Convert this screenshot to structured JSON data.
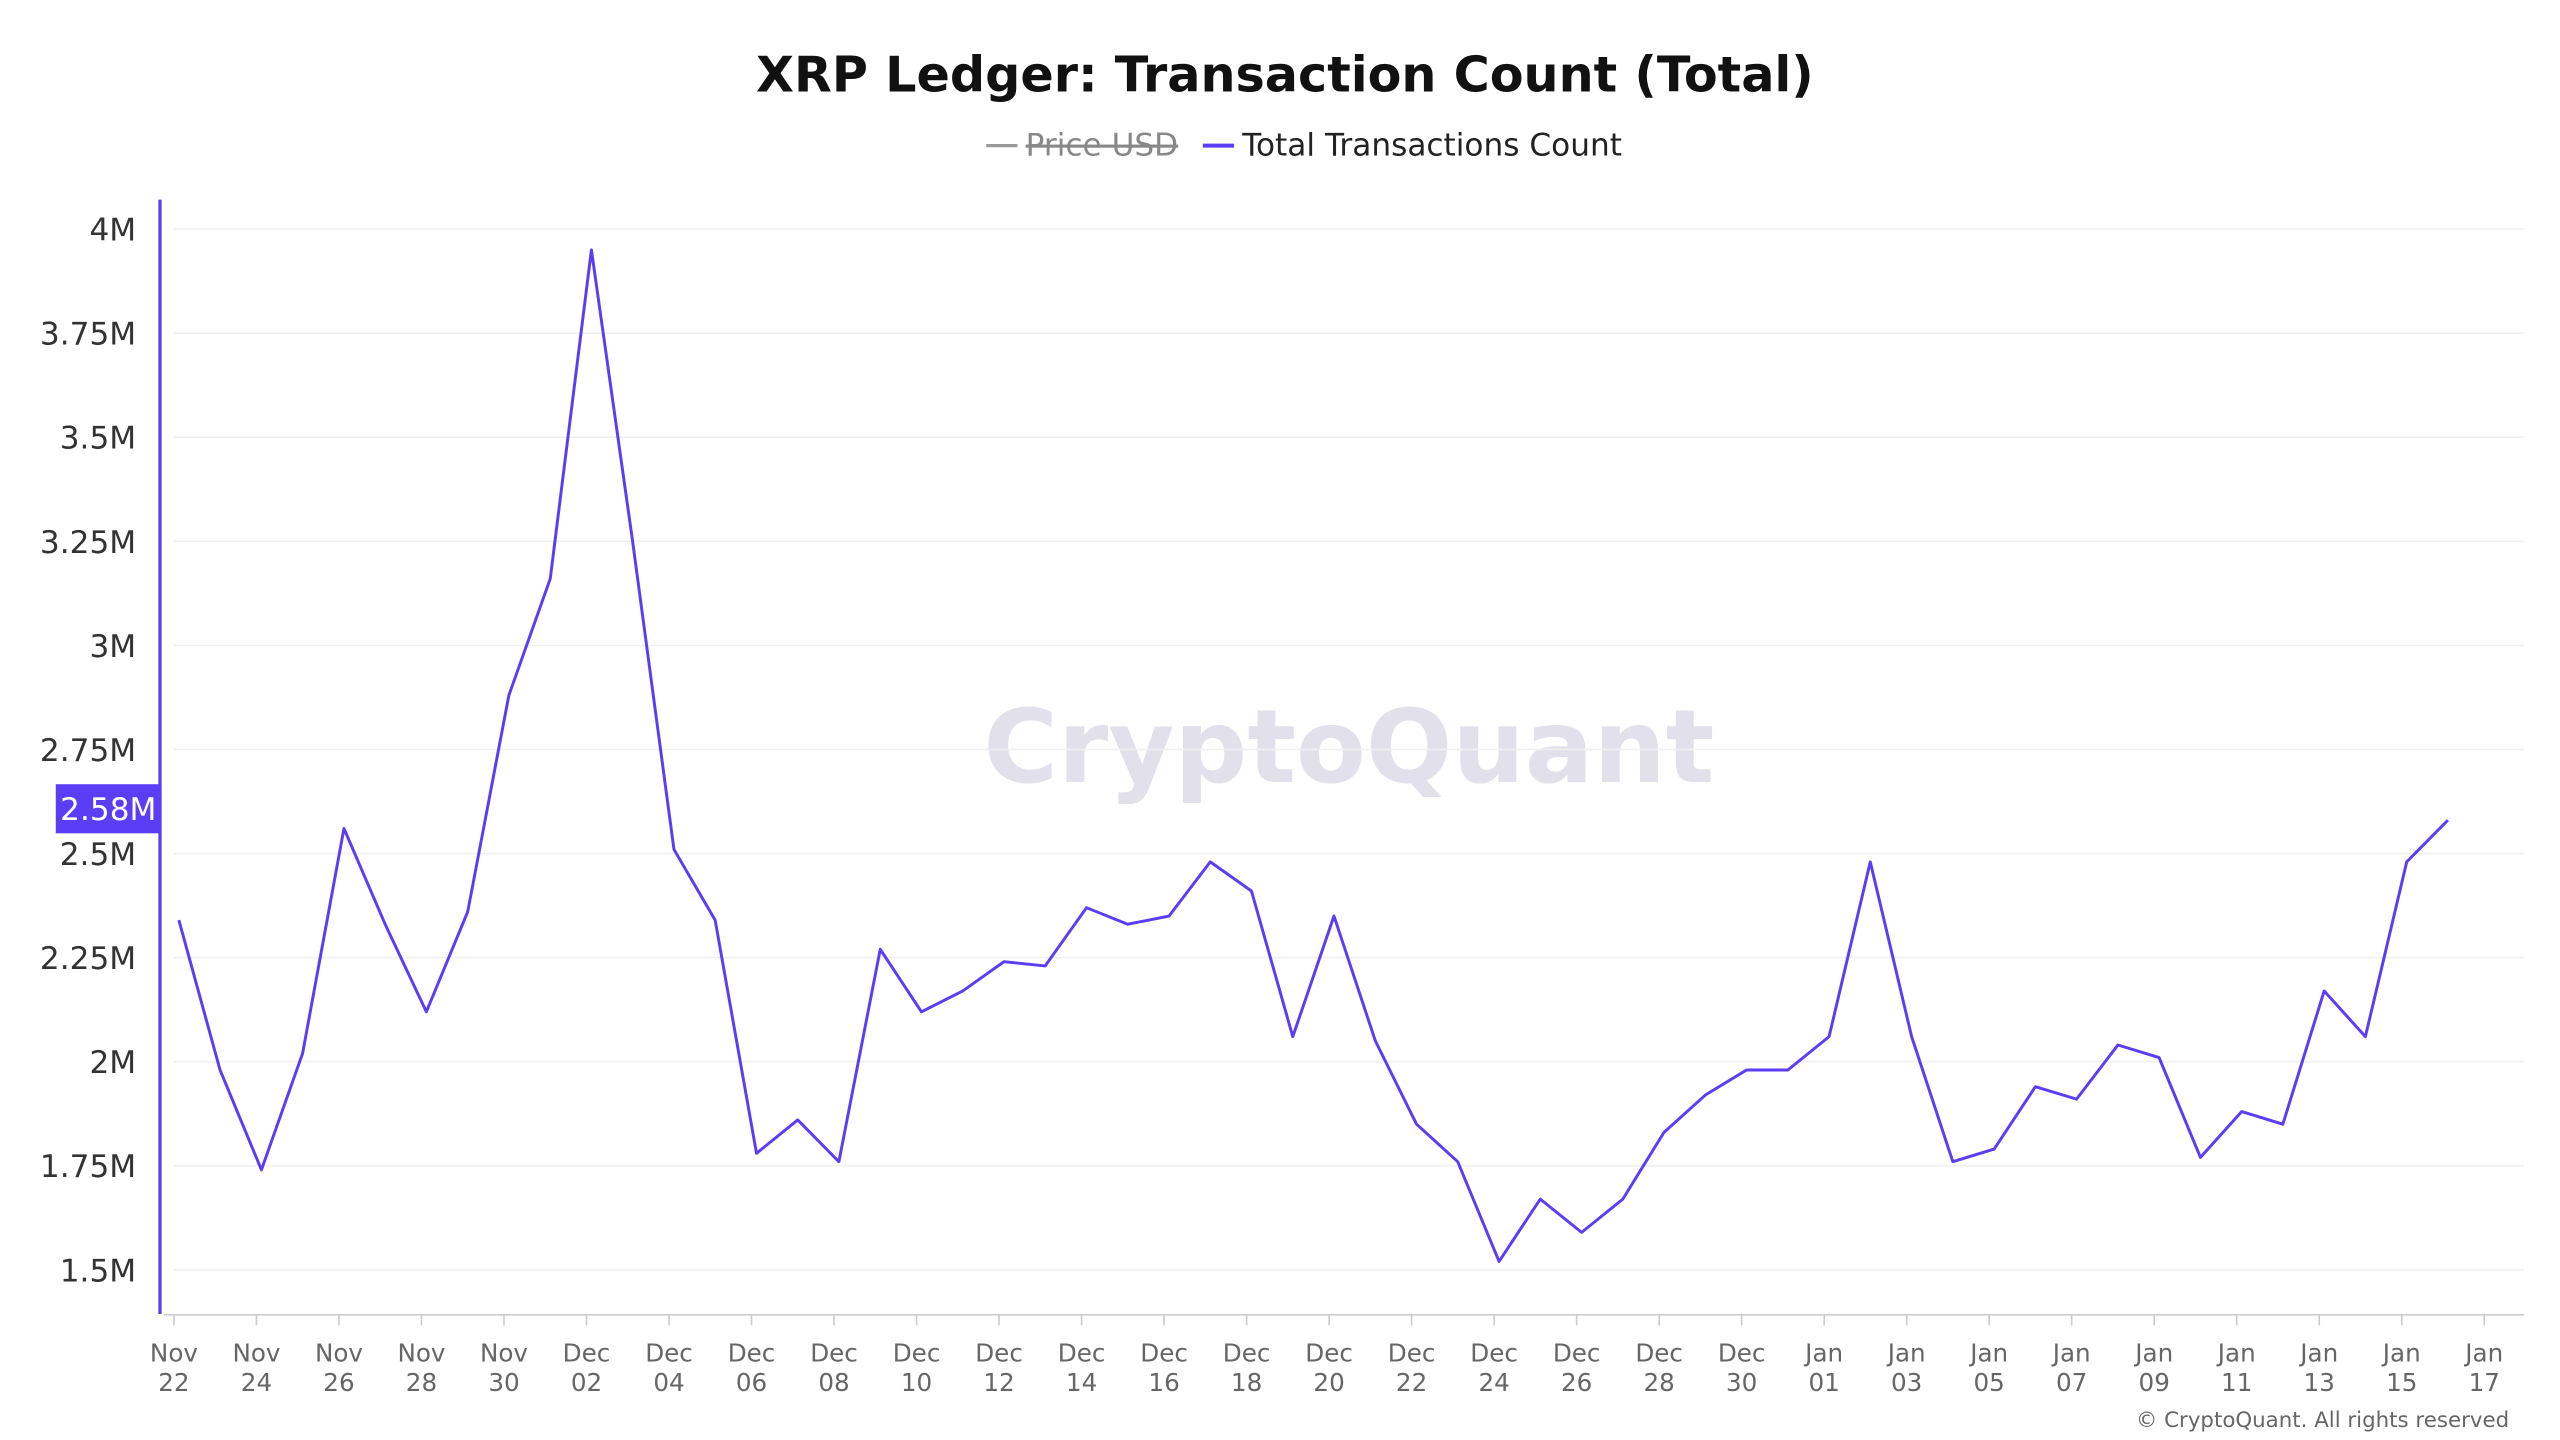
{
  "chart_data": {
    "type": "line",
    "title": "XRP Ledger: Transaction Count (Total)",
    "legend": [
      {
        "name": "Price USD",
        "color": "#999999",
        "disabled": true
      },
      {
        "name": "Total Transactions Count",
        "color": "#5b3df5",
        "disabled": false
      }
    ],
    "legend_placement": "top-center",
    "watermark": "CryptoQuant",
    "copyright": "© CryptoQuant. All rights reserved",
    "ylim": [
      1.4,
      4.1
    ],
    "yticks": [
      1.5,
      1.75,
      2,
      2.25,
      2.5,
      2.75,
      3,
      3.25,
      3.5,
      3.75,
      4
    ],
    "ytick_labels": [
      "1.5M",
      "1.75M",
      "2M",
      "2.25M",
      "2.5M",
      "2.75M",
      "3M",
      "3.25M",
      "3.5M",
      "3.75M",
      "4M"
    ],
    "y_unit": "M",
    "grid": true,
    "current_value_label": "2.58M",
    "x_start_label": "Nov 22",
    "xtick_labels": [
      [
        "Nov",
        "22"
      ],
      [
        "Nov",
        "24"
      ],
      [
        "Nov",
        "26"
      ],
      [
        "Nov",
        "28"
      ],
      [
        "Nov",
        "30"
      ],
      [
        "Dec",
        "02"
      ],
      [
        "Dec",
        "04"
      ],
      [
        "Dec",
        "06"
      ],
      [
        "Dec",
        "08"
      ],
      [
        "Dec",
        "10"
      ],
      [
        "Dec",
        "12"
      ],
      [
        "Dec",
        "14"
      ],
      [
        "Dec",
        "16"
      ],
      [
        "Dec",
        "18"
      ],
      [
        "Dec",
        "20"
      ],
      [
        "Dec",
        "22"
      ],
      [
        "Dec",
        "24"
      ],
      [
        "Dec",
        "26"
      ],
      [
        "Dec",
        "28"
      ],
      [
        "Dec",
        "30"
      ],
      [
        "Jan",
        "01"
      ],
      [
        "Jan",
        "03"
      ],
      [
        "Jan",
        "05"
      ],
      [
        "Jan",
        "07"
      ],
      [
        "Jan",
        "09"
      ],
      [
        "Jan",
        "11"
      ],
      [
        "Jan",
        "13"
      ],
      [
        "Jan",
        "15"
      ],
      [
        "Jan",
        "17"
      ]
    ],
    "series": [
      {
        "name": "Total Transactions Count",
        "color": "#5b3df5",
        "x": [
          "Nov 22",
          "Nov 23",
          "Nov 24",
          "Nov 25",
          "Nov 26",
          "Nov 27",
          "Nov 28",
          "Nov 29",
          "Nov 30",
          "Dec 01",
          "Dec 02",
          "Dec 03",
          "Dec 04",
          "Dec 05",
          "Dec 06",
          "Dec 07",
          "Dec 08",
          "Dec 09",
          "Dec 10",
          "Dec 11",
          "Dec 12",
          "Dec 13",
          "Dec 14",
          "Dec 15",
          "Dec 16",
          "Dec 17",
          "Dec 18",
          "Dec 19",
          "Dec 20",
          "Dec 21",
          "Dec 22",
          "Dec 23",
          "Dec 24",
          "Dec 25",
          "Dec 26",
          "Dec 27",
          "Dec 28",
          "Dec 29",
          "Dec 30",
          "Dec 31",
          "Jan 01",
          "Jan 02",
          "Jan 03",
          "Jan 04",
          "Jan 05",
          "Jan 06",
          "Jan 07",
          "Jan 08",
          "Jan 09",
          "Jan 10",
          "Jan 11",
          "Jan 12",
          "Jan 13",
          "Jan 14",
          "Jan 15",
          "Jan 16"
        ],
        "values": [
          2.34,
          1.98,
          1.74,
          2.02,
          2.56,
          2.33,
          2.12,
          2.36,
          2.88,
          3.16,
          3.95,
          3.25,
          2.51,
          2.34,
          1.78,
          1.86,
          1.76,
          2.27,
          2.12,
          2.17,
          2.24,
          2.23,
          2.37,
          2.33,
          2.35,
          2.48,
          2.41,
          2.06,
          2.35,
          2.05,
          1.85,
          1.76,
          1.52,
          1.67,
          1.59,
          1.67,
          1.83,
          1.92,
          1.98,
          1.98,
          2.06,
          2.48,
          2.06,
          1.76,
          1.79,
          1.94,
          1.91,
          2.04,
          2.01,
          1.77,
          1.88,
          1.85,
          2.17,
          2.06,
          2.48,
          2.58
        ]
      }
    ]
  }
}
